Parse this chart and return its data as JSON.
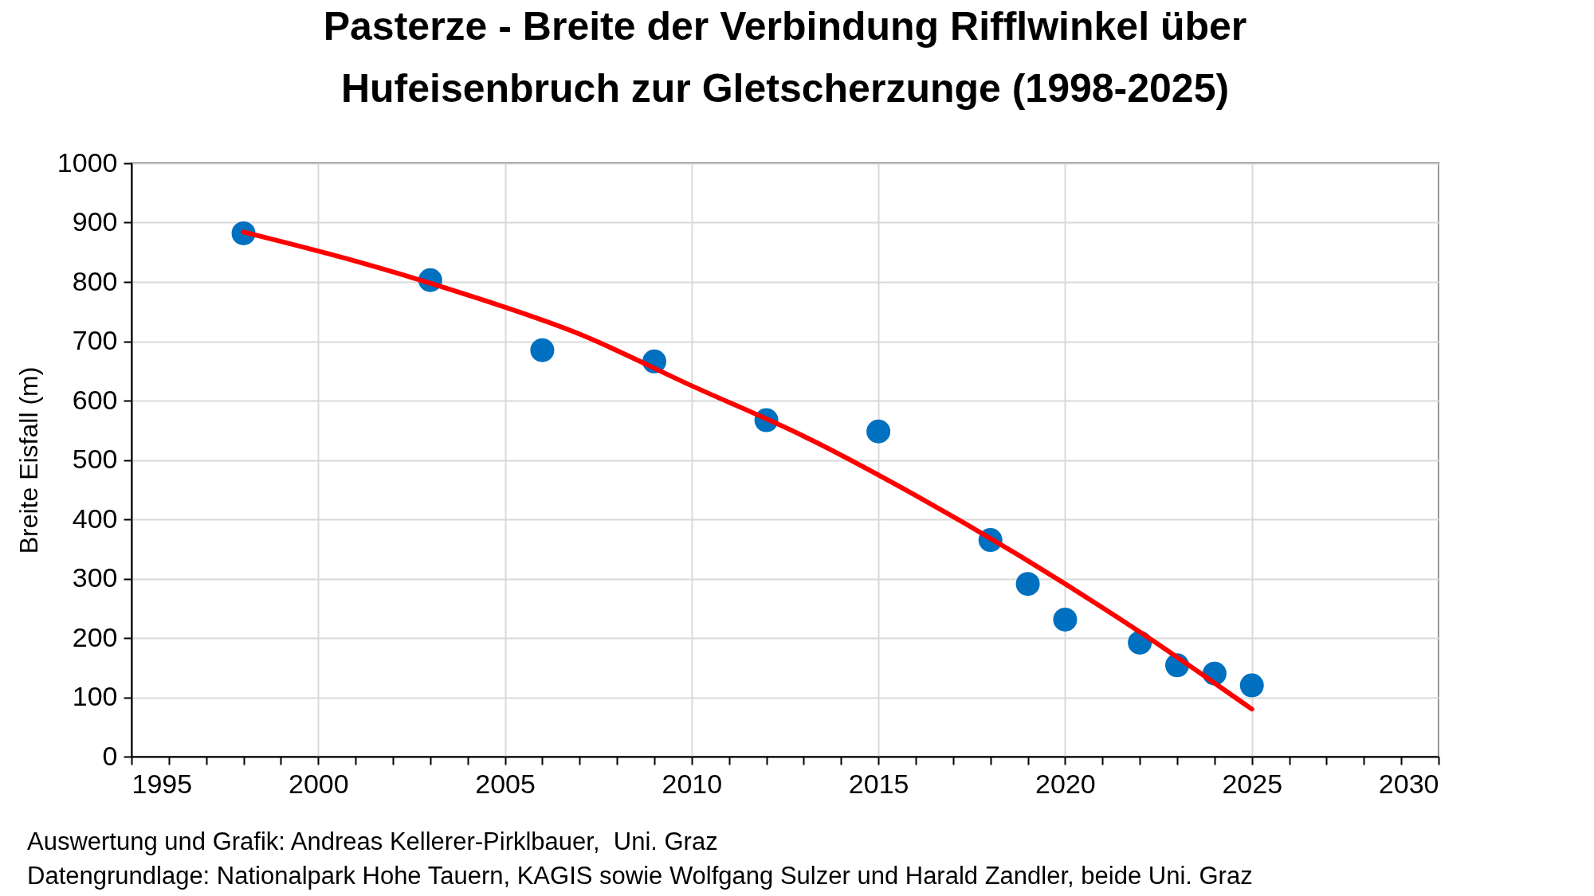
{
  "chart_data": {
    "type": "scatter",
    "title": "Pasterze - Breite der Verbindung Rifflwinkel über Hufeisenbruch zur Gletscherzunge (1998-2025)",
    "ylabel": "Breite Eisfall (m)",
    "x": [
      1998,
      2003,
      2006,
      2009,
      2012,
      2015,
      2018,
      2019,
      2020,
      2022,
      2023,
      2024,
      2025
    ],
    "series": [
      {
        "color": "#0070c0",
        "values": [
          882,
          803,
          685,
          666,
          567,
          548,
          365,
          291,
          231,
          192,
          154,
          140,
          120
        ]
      },
      {
        "type": "line",
        "marker": "none",
        "color": "#ff0000",
        "line_style": "solid",
        "x": [
          1998,
          2001,
          2004,
          2007,
          2010,
          2013,
          2016,
          2019,
          2022,
          2025
        ],
        "values": [
          884,
          835,
          778,
          712,
          625,
          540,
          440,
          330,
          210,
          80
        ]
      }
    ],
    "xlim": [
      1995,
      2030
    ],
    "xticks": [
      1995,
      {
        "value": 1996,
        "label": null
      },
      {
        "value": 1997,
        "label": null
      },
      {
        "value": 1998,
        "label": null
      },
      {
        "value": 1999,
        "label": null
      },
      2000,
      {
        "value": 2001,
        "label": null
      },
      {
        "value": 2002,
        "label": null
      },
      {
        "value": 2003,
        "label": null
      },
      {
        "value": 2004,
        "label": null
      },
      2005,
      {
        "value": 2006,
        "label": null
      },
      {
        "value": 2007,
        "label": null
      },
      {
        "value": 2008,
        "label": null
      },
      {
        "value": 2009,
        "label": null
      },
      2010,
      {
        "value": 2011,
        "label": null
      },
      {
        "value": 2012,
        "label": null
      },
      {
        "value": 2013,
        "label": null
      },
      {
        "value": 2014,
        "label": null
      },
      2015,
      {
        "value": 2016,
        "label": null
      },
      {
        "value": 2017,
        "label": null
      },
      {
        "value": 2018,
        "label": null
      },
      {
        "value": 2019,
        "label": null
      },
      2020,
      {
        "value": 2021,
        "label": null
      },
      {
        "value": 2022,
        "label": null
      },
      {
        "value": 2023,
        "label": null
      },
      {
        "value": 2024,
        "label": null
      },
      2025,
      {
        "value": 2026,
        "label": null
      },
      {
        "value": 2027,
        "label": null
      },
      {
        "value": 2028,
        "label": null
      },
      {
        "value": 2029,
        "label": null
      },
      2030
    ],
    "ylim": [
      0,
      1000
    ],
    "yticks": [
      0,
      100,
      200,
      300,
      400,
      500,
      600,
      700,
      800,
      900,
      1000
    ],
    "grid": true,
    "marker": "circle",
    "annotations": [
      "Auswertung und Grafik: Andreas Kellerer-Pirklbauer,  Uni. Graz",
      "Datengrundlage: Nationalpark Hohe Tauern, KAGIS sowie Wolfgang Sulzer und Harald Zandler, beide Uni. Graz"
    ]
  }
}
